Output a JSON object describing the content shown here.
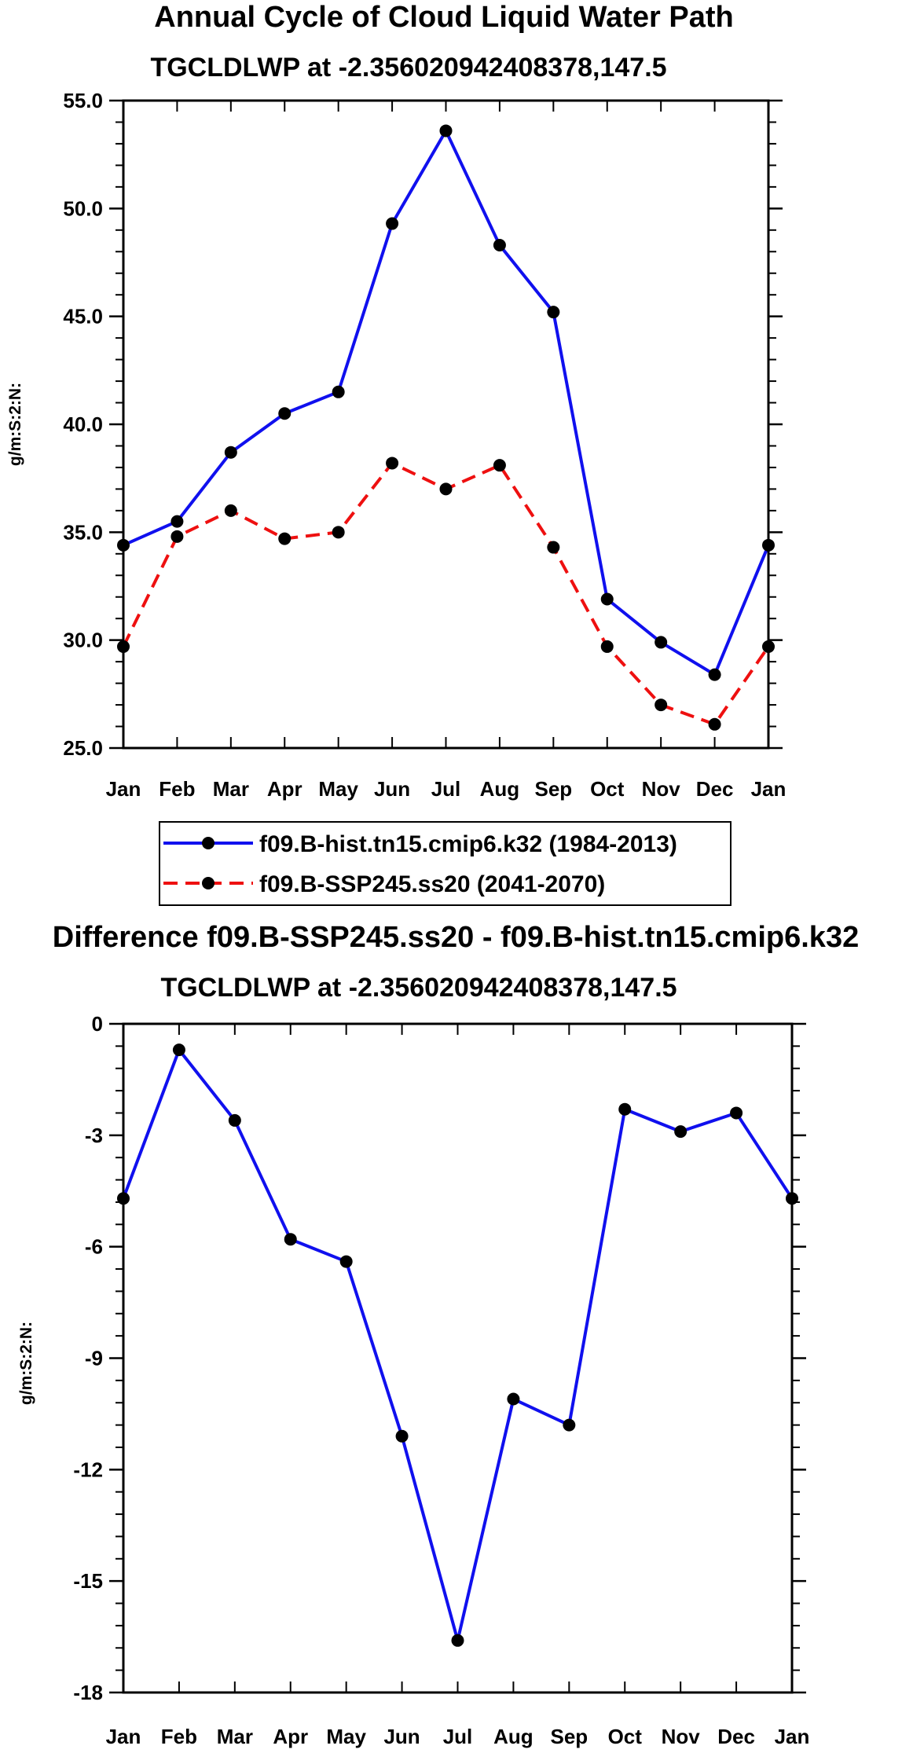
{
  "colors": {
    "series1": "#1010ee",
    "series2": "#ee1010",
    "diff": "#1010ee",
    "marker": "#000000",
    "axis": "#000000"
  },
  "chart_data": [
    {
      "type": "line",
      "title": "Annual Cycle of Cloud Liquid Water Path",
      "subtitle": "TGCLDLWP at -2.356020942408378,147.5",
      "xlabel": "",
      "ylabel": "g/m:S:2:N:",
      "categories": [
        "Jan",
        "Feb",
        "Mar",
        "Apr",
        "May",
        "Jun",
        "Jul",
        "Aug",
        "Sep",
        "Oct",
        "Nov",
        "Dec",
        "Jan"
      ],
      "ylim": [
        25,
        55
      ],
      "yticks": [
        25,
        30,
        35,
        40,
        45,
        50,
        55
      ],
      "ytick_labels": [
        "25.0",
        "30.0",
        "35.0",
        "40.0",
        "45.0",
        "50.0",
        "55.0"
      ],
      "series": [
        {
          "name": "f09.B-hist.tn15.cmip6.k32 (1984-2013)",
          "style": "solid",
          "values": [
            34.4,
            35.5,
            38.7,
            40.5,
            41.5,
            49.3,
            53.6,
            48.3,
            45.2,
            31.9,
            29.9,
            28.4,
            34.4
          ]
        },
        {
          "name": "f09.B-SSP245.ss20 (2041-2070)",
          "style": "dashed",
          "values": [
            29.7,
            34.8,
            36.0,
            34.7,
            35.0,
            38.2,
            37.0,
            38.1,
            34.3,
            29.7,
            27.0,
            26.1,
            29.7
          ]
        }
      ]
    },
    {
      "type": "line",
      "title": "Difference f09.B-SSP245.ss20 - f09.B-hist.tn15.cmip6.k32",
      "subtitle": "TGCLDLWP at -2.356020942408378,147.5",
      "xlabel": "",
      "ylabel": "g/m:S:2:N:",
      "categories": [
        "Jan",
        "Feb",
        "Mar",
        "Apr",
        "May",
        "Jun",
        "Jul",
        "Aug",
        "Sep",
        "Oct",
        "Nov",
        "Dec",
        "Jan"
      ],
      "ylim": [
        -18,
        0
      ],
      "yticks": [
        -18,
        -15,
        -12,
        -9,
        -6,
        -3,
        0
      ],
      "ytick_labels": [
        "-18",
        "-15",
        "-12",
        "-9",
        "-6",
        "-3",
        "0"
      ],
      "series": [
        {
          "name": "Difference",
          "style": "solid",
          "values": [
            -4.7,
            -0.7,
            -2.6,
            -5.8,
            -6.4,
            -11.1,
            -16.6,
            -10.1,
            -10.8,
            -2.3,
            -2.9,
            -2.4,
            -4.7
          ]
        }
      ]
    }
  ]
}
